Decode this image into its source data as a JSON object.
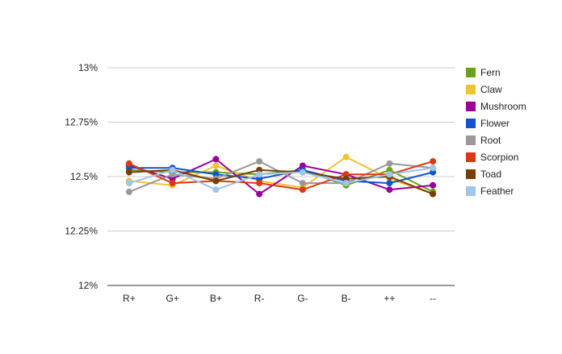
{
  "chart_data": {
    "type": "line",
    "categories": [
      "R+",
      "G+",
      "B+",
      "R-",
      "G-",
      "B-",
      "++",
      "--"
    ],
    "y_ticks": [
      "12%",
      "12.25%",
      "12.5%",
      "12.75%",
      "13%"
    ],
    "y_tick_values": [
      12,
      12.25,
      12.5,
      12.75,
      13
    ],
    "ylim": [
      12,
      13
    ],
    "grid": "horizontal",
    "legend_position": "right",
    "series": [
      {
        "name": "Fern",
        "color": "#6aa318",
        "values": [
          12.53,
          12.52,
          12.52,
          12.51,
          12.53,
          12.46,
          12.53,
          12.43
        ]
      },
      {
        "name": "Claw",
        "color": "#f1c232",
        "values": [
          12.48,
          12.46,
          12.55,
          12.48,
          12.45,
          12.59,
          12.49,
          12.42
        ]
      },
      {
        "name": "Mushroom",
        "color": "#990099",
        "values": [
          12.55,
          12.49,
          12.58,
          12.42,
          12.55,
          12.51,
          12.44,
          12.46
        ]
      },
      {
        "name": "Flower",
        "color": "#1155cc",
        "values": [
          12.54,
          12.54,
          12.51,
          12.49,
          12.53,
          12.48,
          12.47,
          12.52
        ]
      },
      {
        "name": "Root",
        "color": "#999999",
        "values": [
          12.43,
          12.51,
          12.49,
          12.57,
          12.47,
          12.47,
          12.56,
          12.54
        ]
      },
      {
        "name": "Scorpion",
        "color": "#dc3912",
        "values": [
          12.56,
          12.47,
          12.48,
          12.47,
          12.44,
          12.51,
          12.51,
          12.57
        ]
      },
      {
        "name": "Toad",
        "color": "#783f04",
        "values": [
          12.52,
          12.53,
          12.48,
          12.53,
          12.52,
          12.49,
          12.5,
          12.42
        ]
      },
      {
        "name": "Feather",
        "color": "#9fc5e8",
        "values": [
          12.47,
          12.53,
          12.44,
          12.51,
          12.52,
          12.47,
          12.51,
          12.54
        ]
      }
    ]
  }
}
